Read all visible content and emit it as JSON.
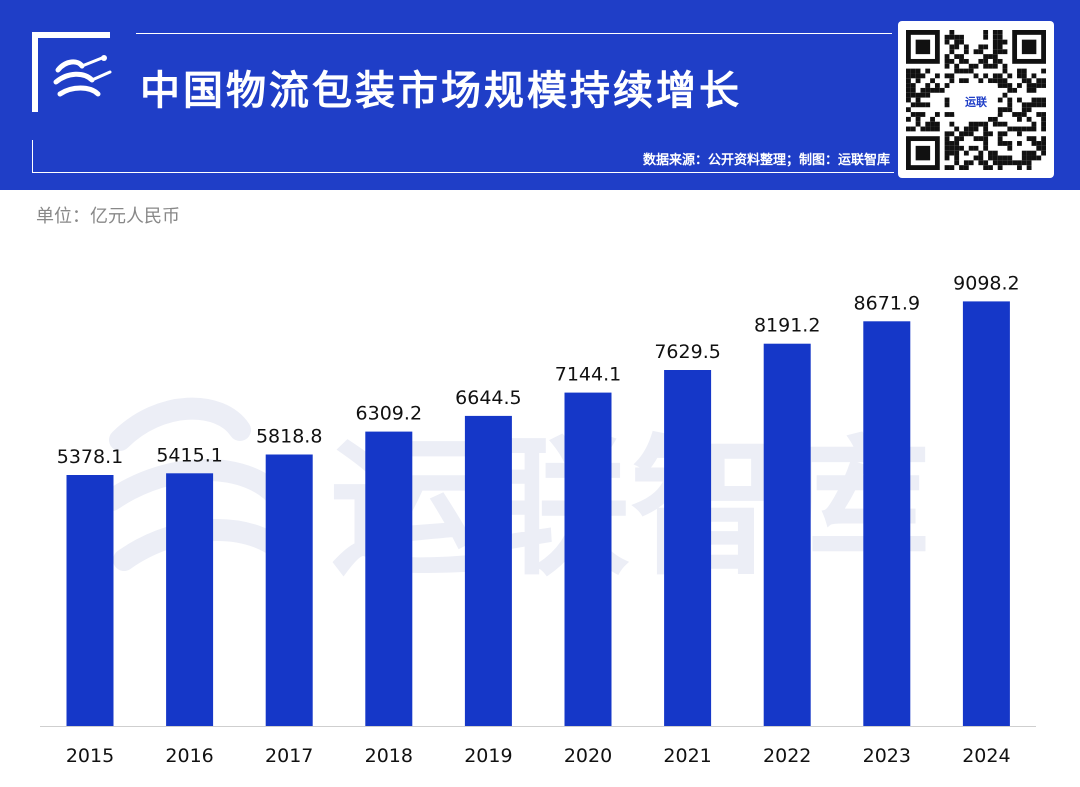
{
  "header": {
    "title": "中国物流包装市场规模持续增长",
    "source": "数据来源：公开资料整理；制图：运联智库",
    "logo_icon": "yunlian-logo-icon",
    "qr_icon": "qr-code-icon",
    "qr_badge_text": "运联"
  },
  "unit_label": "单位：亿元人民币",
  "watermark": "运联智库",
  "colors": {
    "header_bg": "#1f3ec7",
    "bar": "#1537c8",
    "text_on_header": "#ffffff",
    "unit_text": "#888888"
  },
  "chart_data": {
    "type": "bar",
    "title": "中国物流包装市场规模持续增长",
    "xlabel": "",
    "ylabel": "单位：亿元人民币",
    "categories": [
      "2015",
      "2016",
      "2017",
      "2018",
      "2019",
      "2020",
      "2021",
      "2022",
      "2023",
      "2024"
    ],
    "values": [
      5378.1,
      5415.1,
      5818.8,
      6309.2,
      6644.5,
      7144.1,
      7629.5,
      8191.2,
      8671.9,
      9098.2
    ],
    "value_labels": [
      "5378.1",
      "5415.1",
      "5818.8",
      "6309.2",
      "6644.5",
      "7144.1",
      "7629.5",
      "8191.2",
      "8671.9",
      "9098.2"
    ],
    "ylim": [
      0,
      10200
    ],
    "grid": false,
    "legend": "none",
    "data_labels": "above-bars"
  }
}
